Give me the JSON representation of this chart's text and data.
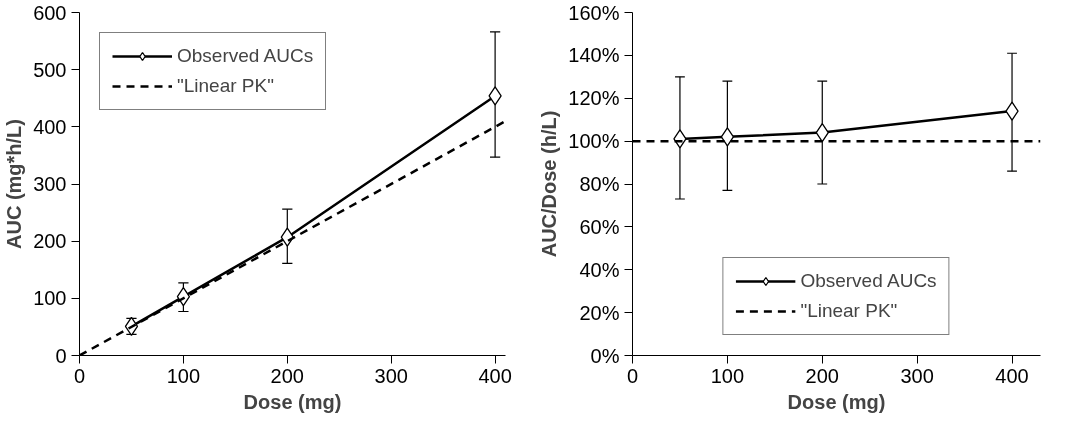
{
  "chart_data": [
    {
      "type": "line",
      "xlabel": "Dose (mg)",
      "ylabel": "AUC (mg*h/L)",
      "xlim": [
        0,
        410
      ],
      "ylim": [
        0,
        600
      ],
      "xticks": [
        0,
        100,
        200,
        300,
        400
      ],
      "yticks": [
        0,
        100,
        200,
        300,
        400,
        500,
        600
      ],
      "grid": false,
      "legend": "top left",
      "series": [
        {
          "name": "Observed AUCs",
          "color": "#000000",
          "x": [
            50,
            100,
            200,
            400
          ],
          "values": [
            51,
            103,
            207,
            454
          ],
          "errors": [
            [
              37,
              65
            ],
            [
              77,
              127
            ],
            [
              161,
              256
            ],
            [
              347,
              566
            ]
          ],
          "marker": "diamond",
          "line_style": "solid"
        },
        {
          "name": "\"Linear PK\"",
          "color": "#000000",
          "x": [
            0,
            410
          ],
          "values": [
            0,
            410
          ],
          "marker": "none",
          "line_style": "dashed"
        }
      ]
    },
    {
      "type": "line",
      "xlabel": "Dose (mg)",
      "ylabel": "AUC/Dose (h/L)",
      "xlim": [
        0,
        430
      ],
      "ylim": [
        0,
        160
      ],
      "xticks": [
        0,
        100,
        200,
        300,
        400
      ],
      "yticks": [
        {
          "value": 0,
          "label": "0%"
        },
        {
          "value": 20,
          "label": "20%"
        },
        {
          "value": 40,
          "label": "40%"
        },
        {
          "value": 60,
          "label": "60%"
        },
        {
          "value": 80,
          "label": "80%"
        },
        {
          "value": 100,
          "label": "100%"
        },
        {
          "value": 120,
          "label": "120%"
        },
        {
          "value": 140,
          "label": "140%"
        },
        {
          "value": 160,
          "label": "160%"
        }
      ],
      "grid": false,
      "legend": "bottom",
      "series": [
        {
          "name": "Observed AUCs",
          "color": "#000000",
          "x": [
            50,
            100,
            200,
            400
          ],
          "values": [
            101,
            102,
            104,
            114
          ],
          "errors": [
            [
              73,
              130
            ],
            [
              77,
              128
            ],
            [
              80,
              128
            ],
            [
              86,
              141
            ]
          ],
          "marker": "diamond",
          "line_style": "solid"
        },
        {
          "name": "\"Linear PK\"",
          "color": "#000000",
          "x": [
            0,
            430
          ],
          "values": [
            100,
            100
          ],
          "marker": "none",
          "line_style": "dashed"
        }
      ]
    }
  ]
}
